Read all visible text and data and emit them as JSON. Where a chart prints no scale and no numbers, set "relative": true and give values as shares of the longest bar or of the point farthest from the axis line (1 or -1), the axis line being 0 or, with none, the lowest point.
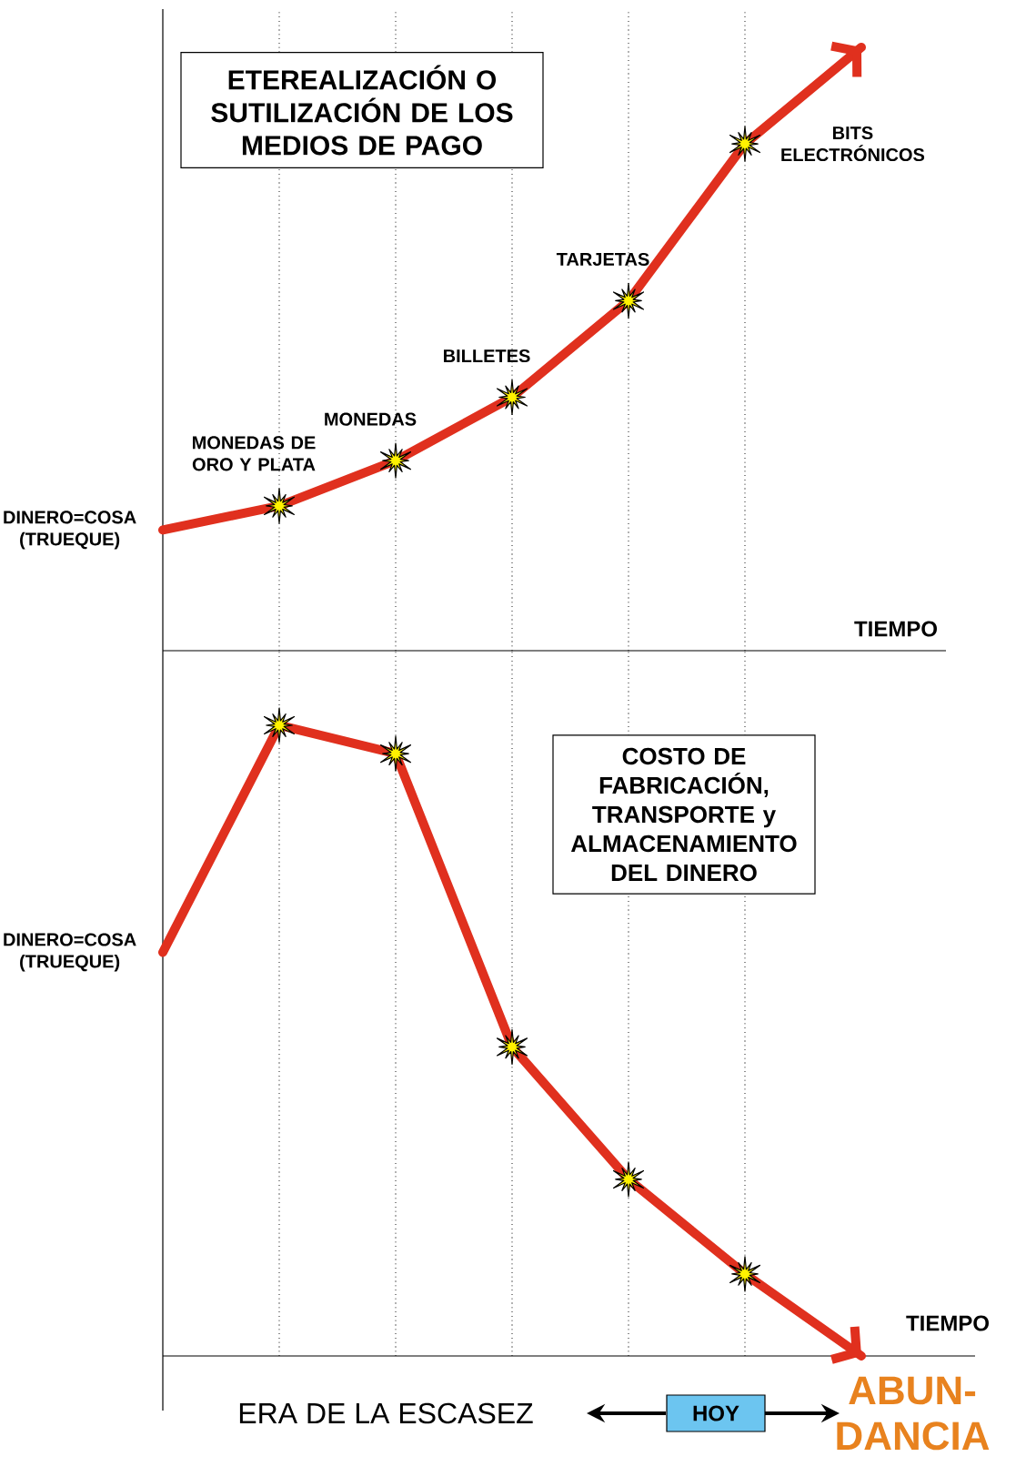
{
  "chart_data": [
    {
      "type": "line",
      "title": "ETEREALIZACIÓN O SUTILIZACIÓN DE LOS MEDIOS DE PAGO",
      "xlabel": "TIEMPO",
      "categories": [
        null,
        null,
        null,
        null,
        null,
        null,
        null
      ],
      "series": [
        {
          "color": "#e0301e",
          "values": [
            0.2,
            0.24,
            0.315,
            0.42,
            0.58,
            0.84,
            1.0
          ]
        }
      ],
      "relative": true,
      "grid": "x",
      "marker": "star",
      "annotations": [
        "DINERO=COSA (TRUEQUE)",
        "MONEDAS DE ORO Y PLATA",
        "MONEDAS",
        "BILLETES",
        "TARJETAS",
        "BITS ELECTRÓNICOS"
      ]
    },
    {
      "type": "line",
      "title": "COSTO DE FABRICACIÓN, TRANSPORTE y ALMACENAMIENTO DEL DINERO",
      "xlabel": "TIEMPO",
      "categories": [
        null,
        null,
        null,
        null,
        null,
        null,
        null
      ],
      "series": [
        {
          "color": "#e0301e",
          "values": [
            0.64,
            1.0,
            0.955,
            0.49,
            0.28,
            0.13,
            0
          ]
        }
      ],
      "relative": true,
      "grid": "x",
      "marker": "star",
      "annotations": [
        "DINERO=COSA (TRUEQUE)",
        "ERA DE LA ESCASEZ",
        "HOY",
        "ABUN-DANCIA"
      ]
    }
  ]
}
